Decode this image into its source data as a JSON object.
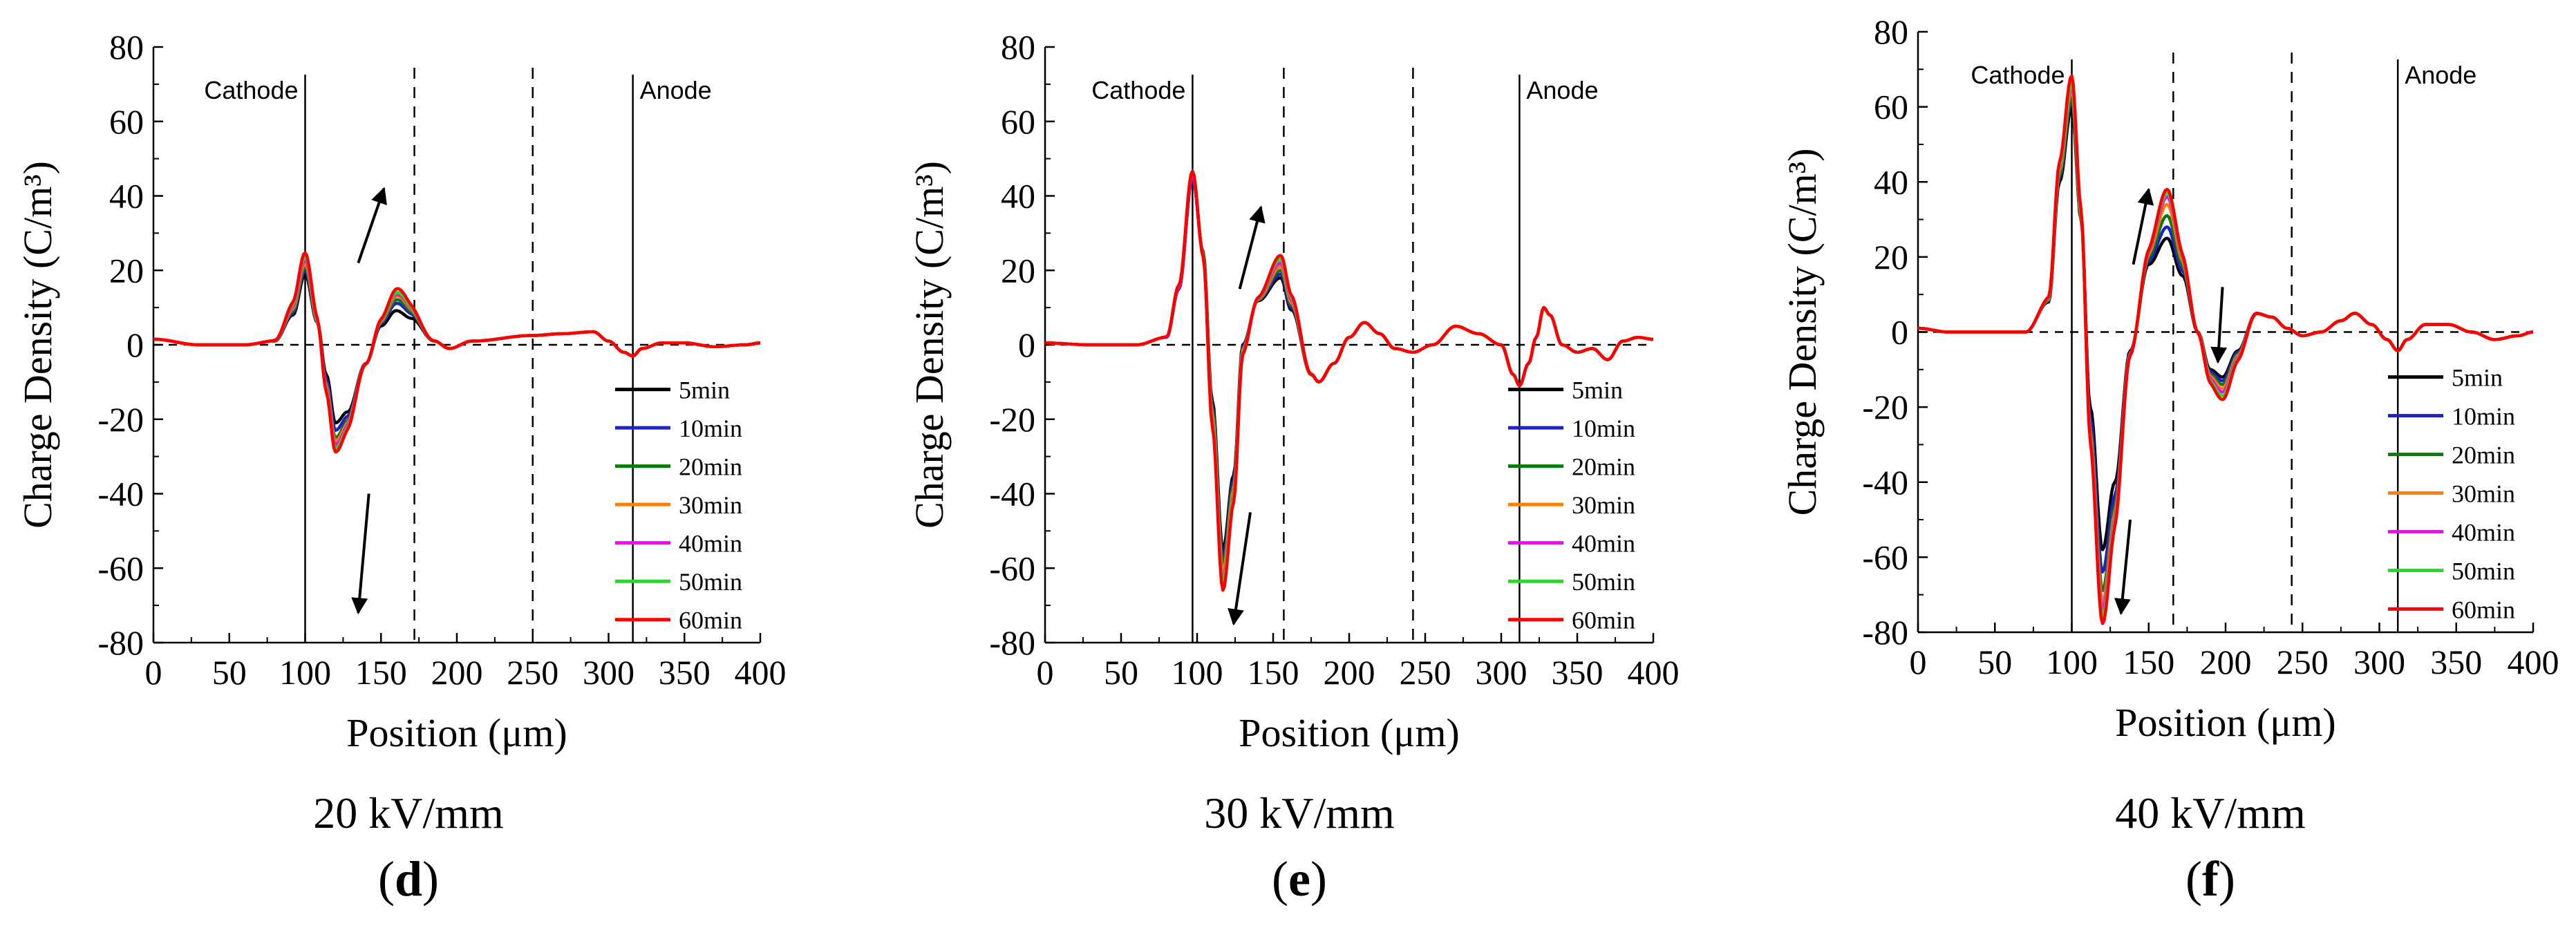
{
  "figure": {
    "type": "chart-grid",
    "panel_count": 3
  },
  "series_style": [
    {
      "name": "5min",
      "color": "#000000"
    },
    {
      "name": "10min",
      "color": "#1f1fcc"
    },
    {
      "name": "20min",
      "color": "#0a7a0a"
    },
    {
      "name": "30min",
      "color": "#ff7f00"
    },
    {
      "name": "40min",
      "color": "#ff00ff"
    },
    {
      "name": "50min",
      "color": "#22dd22"
    },
    {
      "name": "60min",
      "color": "#ff0000"
    }
  ],
  "chart_data": [
    {
      "type": "line",
      "title": "20 kV/mm",
      "label": "(d)",
      "label_letter": "d",
      "xlabel": "Position (μm)",
      "ylabel": "Charge Density (C/m³)",
      "xlim": [
        0,
        400
      ],
      "ylim": [
        -80,
        80
      ],
      "xticks": [
        0,
        50,
        100,
        150,
        200,
        250,
        300,
        350,
        400
      ],
      "yticks": [
        -80,
        -60,
        -40,
        -20,
        0,
        20,
        40,
        60,
        80
      ],
      "x_tick_labels": [
        "0",
        "50",
        "100",
        "150",
        "200",
        "250",
        "300",
        "350",
        "400"
      ],
      "y_tick_labels": [
        "-80",
        "-60",
        "-40",
        "-20",
        "0",
        "20",
        "40",
        "60",
        "80"
      ],
      "electrodes": [
        {
          "label": "Cathode",
          "x": 100
        },
        {
          "label": "Anode",
          "x": 316
        }
      ],
      "dashed_lines_x": [
        172,
        250
      ],
      "annotations": [
        {
          "type": "arrow",
          "from": [
            135,
            22
          ],
          "to": [
            152,
            42
          ]
        },
        {
          "type": "arrow",
          "from": [
            142,
            -40
          ],
          "to": [
            135,
            -72
          ]
        }
      ],
      "legend_position": "bottom-right",
      "base_profile": [
        [
          0,
          1.5
        ],
        [
          30,
          0
        ],
        [
          60,
          0
        ],
        [
          80,
          1
        ],
        [
          92,
          8
        ],
        [
          100,
          19
        ],
        [
          108,
          6
        ],
        [
          114,
          -8
        ],
        [
          120,
          -21
        ],
        [
          128,
          -18
        ],
        [
          140,
          -5
        ],
        [
          150,
          5
        ],
        [
          160,
          9
        ],
        [
          170,
          7
        ],
        [
          185,
          1
        ],
        [
          195,
          -1
        ],
        [
          210,
          1
        ],
        [
          250,
          2.5
        ],
        [
          270,
          3
        ],
        [
          290,
          3.5
        ],
        [
          300,
          1
        ],
        [
          310,
          -2
        ],
        [
          316,
          -3
        ],
        [
          322,
          -1
        ],
        [
          335,
          0.5
        ],
        [
          350,
          0.5
        ],
        [
          370,
          -0.5
        ],
        [
          390,
          0
        ],
        [
          400,
          0.5
        ]
      ],
      "series": [
        {
          "name": "5min",
          "values": {
            "100": 19,
            "120": -21,
            "162": 9
          }
        },
        {
          "name": "10min",
          "values": {
            "100": 20,
            "120": -23,
            "162": 11
          }
        },
        {
          "name": "20min",
          "values": {
            "100": 21,
            "120": -25,
            "162": 12
          }
        },
        {
          "name": "30min",
          "values": {
            "100": 22,
            "120": -26,
            "162": 13
          }
        },
        {
          "name": "40min",
          "values": {
            "100": 23,
            "120": -27,
            "162": 13.5
          }
        },
        {
          "name": "50min",
          "values": {
            "100": 24,
            "120": -28,
            "162": 14
          }
        },
        {
          "name": "60min",
          "values": {
            "100": 25,
            "120": -29,
            "162": 15
          }
        }
      ]
    },
    {
      "type": "line",
      "title": "30 kV/mm",
      "label": "(e)",
      "label_letter": "e",
      "xlabel": "Position (μm)",
      "ylabel": "Charge Density (C/m³)",
      "xlim": [
        0,
        400
      ],
      "ylim": [
        -80,
        80
      ],
      "xticks": [
        0,
        50,
        100,
        150,
        200,
        250,
        300,
        350,
        400
      ],
      "yticks": [
        -80,
        -60,
        -40,
        -20,
        0,
        20,
        40,
        60,
        80
      ],
      "x_tick_labels": [
        "0",
        "50",
        "100",
        "150",
        "200",
        "250",
        "300",
        "350",
        "400"
      ],
      "y_tick_labels": [
        "-80",
        "-60",
        "-40",
        "-20",
        "0",
        "20",
        "40",
        "60",
        "80"
      ],
      "electrodes": [
        {
          "label": "Cathode",
          "x": 97
        },
        {
          "label": "Anode",
          "x": 312
        }
      ],
      "dashed_lines_x": [
        157,
        242
      ],
      "annotations": [
        {
          "type": "arrow",
          "from": [
            128,
            15
          ],
          "to": [
            142,
            37
          ]
        },
        {
          "type": "arrow",
          "from": [
            135,
            -45
          ],
          "to": [
            124,
            -75
          ]
        }
      ],
      "legend_position": "bottom-right",
      "base_profile": [
        [
          0,
          0.5
        ],
        [
          30,
          0
        ],
        [
          60,
          0
        ],
        [
          80,
          2
        ],
        [
          88,
          15
        ],
        [
          97,
          45
        ],
        [
          104,
          25
        ],
        [
          110,
          -15
        ],
        [
          117,
          -55
        ],
        [
          124,
          -35
        ],
        [
          130,
          0
        ],
        [
          140,
          12
        ],
        [
          155,
          19
        ],
        [
          162,
          10
        ],
        [
          175,
          -8
        ],
        [
          180,
          -10
        ],
        [
          190,
          -5
        ],
        [
          200,
          2
        ],
        [
          210,
          6
        ],
        [
          220,
          3
        ],
        [
          230,
          -1
        ],
        [
          242,
          -2
        ],
        [
          255,
          0
        ],
        [
          270,
          5
        ],
        [
          285,
          3
        ],
        [
          300,
          0
        ],
        [
          308,
          -8
        ],
        [
          312,
          -11
        ],
        [
          318,
          -5
        ],
        [
          323,
          2
        ],
        [
          328,
          10
        ],
        [
          332,
          8
        ],
        [
          340,
          0
        ],
        [
          350,
          -2
        ],
        [
          360,
          -1
        ],
        [
          370,
          -4
        ],
        [
          380,
          1
        ],
        [
          390,
          2
        ],
        [
          400,
          1.5
        ]
      ],
      "series": [
        {
          "name": "5min",
          "values": {
            "97": 45,
            "117": -55,
            "155": 18
          }
        },
        {
          "name": "10min",
          "values": {
            "97": 45,
            "117": -57,
            "155": 19
          }
        },
        {
          "name": "20min",
          "values": {
            "97": 46,
            "117": -59,
            "155": 20
          }
        },
        {
          "name": "30min",
          "values": {
            "97": 46,
            "117": -61,
            "155": 21
          }
        },
        {
          "name": "40min",
          "values": {
            "97": 46,
            "117": -63,
            "155": 22
          }
        },
        {
          "name": "50min",
          "values": {
            "97": 47,
            "117": -64,
            "155": 23
          }
        },
        {
          "name": "60min",
          "values": {
            "97": 47,
            "117": -66,
            "155": 24
          }
        }
      ]
    },
    {
      "type": "line",
      "title": "40 kV/mm",
      "label": "(f)",
      "label_letter": "f",
      "xlabel": "Position (μm)",
      "ylabel": "Charge Density (C/m³)",
      "xlim": [
        0,
        400
      ],
      "ylim": [
        -80,
        80
      ],
      "xticks": [
        0,
        50,
        100,
        150,
        200,
        250,
        300,
        350,
        400
      ],
      "yticks": [
        -80,
        -60,
        -40,
        -20,
        0,
        20,
        40,
        60,
        80
      ],
      "x_tick_labels": [
        "0",
        "50",
        "100",
        "150",
        "200",
        "250",
        "300",
        "350",
        "400"
      ],
      "y_tick_labels": [
        "-80",
        "-60",
        "-40",
        "-20",
        "0",
        "20",
        "40",
        "60",
        "80"
      ],
      "electrodes": [
        {
          "label": "Cathode",
          "x": 100
        },
        {
          "label": "Anode",
          "x": 312
        }
      ],
      "dashed_lines_x": [
        166,
        243
      ],
      "annotations": [
        {
          "type": "arrow",
          "from": [
            140,
            18
          ],
          "to": [
            150,
            38
          ]
        },
        {
          "type": "arrow",
          "from": [
            138,
            -50
          ],
          "to": [
            132,
            -75
          ]
        },
        {
          "type": "arrow",
          "from": [
            198,
            12
          ],
          "to": [
            195,
            -8
          ]
        }
      ],
      "legend_position": "bottom-right",
      "base_profile": [
        [
          0,
          1
        ],
        [
          20,
          0
        ],
        [
          40,
          0
        ],
        [
          70,
          0
        ],
        [
          85,
          8
        ],
        [
          92,
          40
        ],
        [
          100,
          60
        ],
        [
          106,
          30
        ],
        [
          112,
          -20
        ],
        [
          120,
          -58
        ],
        [
          128,
          -40
        ],
        [
          138,
          -5
        ],
        [
          150,
          18
        ],
        [
          162,
          25
        ],
        [
          172,
          15
        ],
        [
          182,
          0
        ],
        [
          190,
          -10
        ],
        [
          198,
          -12
        ],
        [
          208,
          -5
        ],
        [
          220,
          5
        ],
        [
          230,
          4
        ],
        [
          240,
          1
        ],
        [
          250,
          -1
        ],
        [
          262,
          0
        ],
        [
          275,
          3
        ],
        [
          284,
          5
        ],
        [
          295,
          2
        ],
        [
          305,
          -2
        ],
        [
          312,
          -5
        ],
        [
          318,
          -2
        ],
        [
          330,
          2
        ],
        [
          345,
          2
        ],
        [
          360,
          0
        ],
        [
          375,
          -2
        ],
        [
          390,
          -1
        ],
        [
          400,
          0
        ]
      ],
      "series": [
        {
          "name": "5min",
          "values": {
            "100": 60,
            "120": -58,
            "162": 25,
            "198": -12
          }
        },
        {
          "name": "10min",
          "values": {
            "100": 62,
            "120": -64,
            "162": 28,
            "198": -13
          }
        },
        {
          "name": "20min",
          "values": {
            "100": 63,
            "120": -69,
            "162": 31,
            "198": -14
          }
        },
        {
          "name": "30min",
          "values": {
            "100": 65,
            "120": -72,
            "162": 34,
            "198": -15
          }
        },
        {
          "name": "40min",
          "values": {
            "100": 66,
            "120": -74,
            "162": 36,
            "198": -16
          }
        },
        {
          "name": "50min",
          "values": {
            "100": 67,
            "120": -76,
            "162": 37,
            "198": -17
          }
        },
        {
          "name": "60min",
          "values": {
            "100": 69,
            "120": -78,
            "162": 38,
            "198": -18
          }
        }
      ]
    }
  ]
}
